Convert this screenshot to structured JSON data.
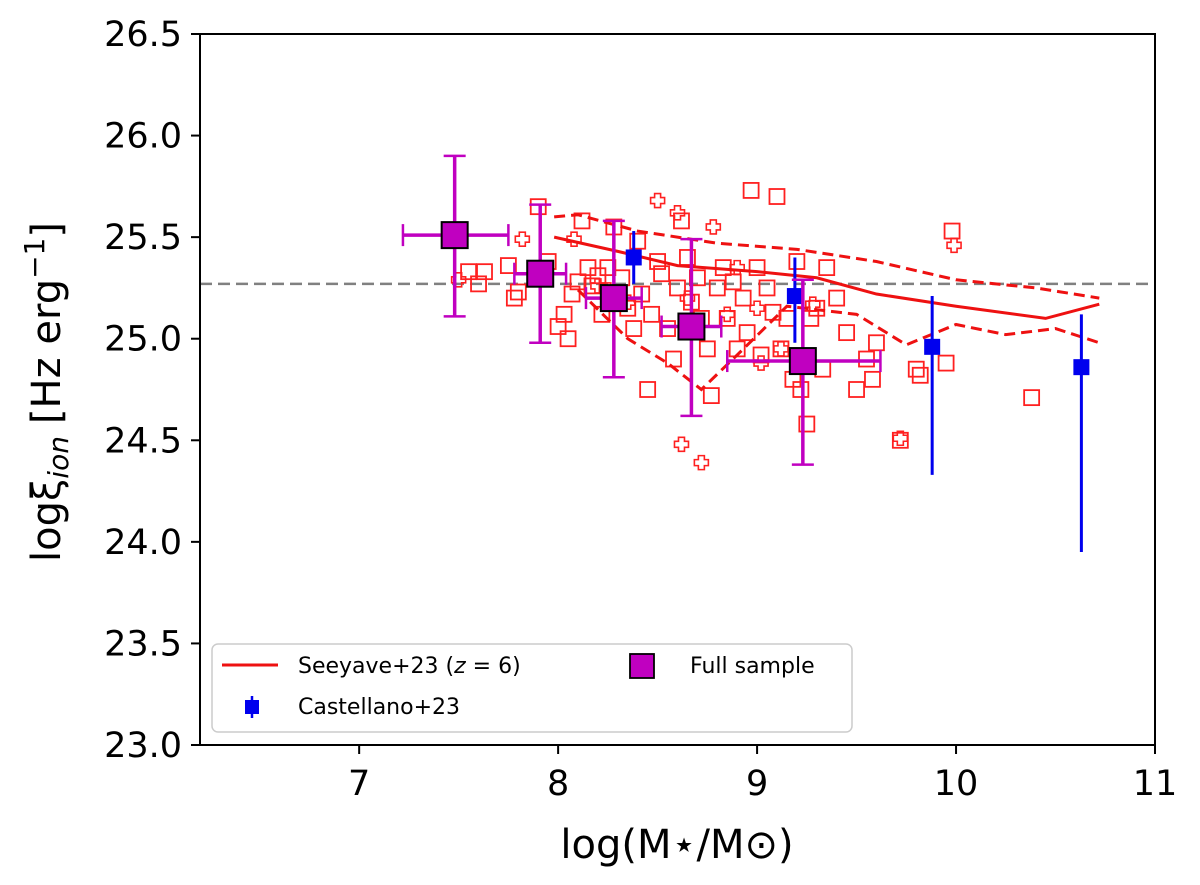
{
  "chart_data": {
    "type": "scatter",
    "title": "",
    "xlabel": "log(M⋆/M⊙)",
    "ylabel_main": "logξ",
    "ylabel_sub": "ion",
    "ylabel_unit": "[Hz erg",
    "ylabel_exp": "−1",
    "ylabel_close": "]",
    "xlim": [
      6.2,
      11.0
    ],
    "ylim": [
      23.0,
      26.5
    ],
    "xticks": [
      7,
      8,
      9,
      10,
      11
    ],
    "xtick_labels": [
      "7",
      "8",
      "9",
      "10",
      "11"
    ],
    "yticks": [
      23.0,
      23.5,
      24.0,
      24.5,
      25.0,
      25.5,
      26.0,
      26.5
    ],
    "ytick_labels": [
      "23.0",
      "23.5",
      "24.0",
      "24.5",
      "25.0",
      "25.5",
      "26.0",
      "26.5"
    ],
    "reference_line": {
      "y": 25.27,
      "style": "dashed",
      "color": "#808080"
    },
    "colors": {
      "individual": "#ff2020",
      "seeyave": "#ee1111",
      "castellano": "#0000ee",
      "full_sample": "#c000c0",
      "reference": "#808080"
    },
    "series": [
      {
        "name": "Individual galaxies (squares)",
        "marker": "open-square",
        "points": [
          [
            7.55,
            25.33
          ],
          [
            7.6,
            25.27
          ],
          [
            7.63,
            25.33
          ],
          [
            7.75,
            25.36
          ],
          [
            7.78,
            25.2
          ],
          [
            7.8,
            25.23
          ],
          [
            7.9,
            25.65
          ],
          [
            7.95,
            25.38
          ],
          [
            8.0,
            25.06
          ],
          [
            8.03,
            25.12
          ],
          [
            8.05,
            25.0
          ],
          [
            8.07,
            25.22
          ],
          [
            8.1,
            25.28
          ],
          [
            8.12,
            25.58
          ],
          [
            8.15,
            25.35
          ],
          [
            8.17,
            25.26
          ],
          [
            8.2,
            25.31
          ],
          [
            8.22,
            25.12
          ],
          [
            8.25,
            25.35
          ],
          [
            8.28,
            25.55
          ],
          [
            8.3,
            25.2
          ],
          [
            8.32,
            25.3
          ],
          [
            8.35,
            25.15
          ],
          [
            8.38,
            25.05
          ],
          [
            8.4,
            25.48
          ],
          [
            8.42,
            25.22
          ],
          [
            8.45,
            24.75
          ],
          [
            8.47,
            25.12
          ],
          [
            8.5,
            25.38
          ],
          [
            8.52,
            25.32
          ],
          [
            8.55,
            25.05
          ],
          [
            8.58,
            24.9
          ],
          [
            8.6,
            25.25
          ],
          [
            8.62,
            25.58
          ],
          [
            8.65,
            25.4
          ],
          [
            8.67,
            25.18
          ],
          [
            8.7,
            25.3
          ],
          [
            8.72,
            25.1
          ],
          [
            8.75,
            24.95
          ],
          [
            8.77,
            24.72
          ],
          [
            8.8,
            25.25
          ],
          [
            8.83,
            25.35
          ],
          [
            8.85,
            25.1
          ],
          [
            8.88,
            25.28
          ],
          [
            8.9,
            24.95
          ],
          [
            8.93,
            25.2
          ],
          [
            8.95,
            25.03
          ],
          [
            8.97,
            25.73
          ],
          [
            9.0,
            25.35
          ],
          [
            9.02,
            24.92
          ],
          [
            9.05,
            25.25
          ],
          [
            9.08,
            25.13
          ],
          [
            9.1,
            25.7
          ],
          [
            9.12,
            24.95
          ],
          [
            9.15,
            25.1
          ],
          [
            9.18,
            24.8
          ],
          [
            9.2,
            25.38
          ],
          [
            9.22,
            24.75
          ],
          [
            9.25,
            24.58
          ],
          [
            9.27,
            25.1
          ],
          [
            9.3,
            25.15
          ],
          [
            9.33,
            24.85
          ],
          [
            9.35,
            25.35
          ],
          [
            9.4,
            25.2
          ],
          [
            9.45,
            25.03
          ],
          [
            9.5,
            24.75
          ],
          [
            9.55,
            24.9
          ],
          [
            9.58,
            24.8
          ],
          [
            9.6,
            24.98
          ],
          [
            9.72,
            24.5
          ],
          [
            9.8,
            24.85
          ],
          [
            9.82,
            24.82
          ],
          [
            9.95,
            24.88
          ],
          [
            9.98,
            25.53
          ],
          [
            10.38,
            24.71
          ]
        ]
      },
      {
        "name": "Individual galaxies (crosses)",
        "marker": "open-plus",
        "points": [
          [
            7.5,
            25.29
          ],
          [
            7.82,
            25.49
          ],
          [
            8.08,
            25.49
          ],
          [
            8.2,
            25.26
          ],
          [
            8.25,
            25.24
          ],
          [
            8.35,
            25.18
          ],
          [
            8.5,
            25.68
          ],
          [
            8.6,
            25.62
          ],
          [
            8.62,
            24.48
          ],
          [
            8.65,
            25.2
          ],
          [
            8.72,
            24.39
          ],
          [
            8.78,
            25.55
          ],
          [
            8.85,
            25.12
          ],
          [
            8.9,
            25.35
          ],
          [
            9.0,
            25.15
          ],
          [
            9.02,
            24.88
          ],
          [
            9.12,
            24.95
          ],
          [
            9.28,
            25.17
          ],
          [
            9.72,
            24.51
          ],
          [
            9.99,
            25.46
          ]
        ]
      },
      {
        "name": "Seeyave+23 (z = 6)",
        "style": "line",
        "median": [
          [
            7.98,
            25.5
          ],
          [
            8.3,
            25.43
          ],
          [
            8.6,
            25.36
          ],
          [
            9.0,
            25.33
          ],
          [
            9.3,
            25.3
          ],
          [
            9.6,
            25.22
          ],
          [
            10.0,
            25.16
          ],
          [
            10.45,
            25.1
          ],
          [
            10.72,
            25.17
          ]
        ],
        "upper": [
          [
            7.98,
            25.6
          ],
          [
            8.1,
            25.61
          ],
          [
            8.4,
            25.53
          ],
          [
            8.8,
            25.47
          ],
          [
            9.2,
            25.44
          ],
          [
            9.6,
            25.38
          ],
          [
            10.0,
            25.29
          ],
          [
            10.4,
            25.25
          ],
          [
            10.72,
            25.2
          ]
        ],
        "lower": [
          [
            8.1,
            25.24
          ],
          [
            8.35,
            25.0
          ],
          [
            8.55,
            24.88
          ],
          [
            8.72,
            24.75
          ],
          [
            8.9,
            24.92
          ],
          [
            9.15,
            25.16
          ],
          [
            9.5,
            25.12
          ],
          [
            9.75,
            24.97
          ],
          [
            10.0,
            25.07
          ],
          [
            10.25,
            25.02
          ],
          [
            10.5,
            25.05
          ],
          [
            10.72,
            24.98
          ]
        ]
      },
      {
        "name": "Castellano+23",
        "marker": "filled-square",
        "points": [
          {
            "x": 8.38,
            "y": 25.4,
            "ylo": 25.27,
            "yhi": 25.53
          },
          {
            "x": 9.19,
            "y": 25.21,
            "ylo": 24.98,
            "yhi": 25.4
          },
          {
            "x": 9.88,
            "y": 24.96,
            "ylo": 24.33,
            "yhi": 25.21
          },
          {
            "x": 10.63,
            "y": 24.86,
            "ylo": 23.95,
            "yhi": 25.12
          }
        ]
      },
      {
        "name": "Full sample",
        "marker": "big-square",
        "points": [
          {
            "x": 7.48,
            "y": 25.51,
            "xlo": 7.22,
            "xhi": 7.75,
            "ylo": 25.11,
            "yhi": 25.9
          },
          {
            "x": 7.91,
            "y": 25.32,
            "xlo": 7.78,
            "xhi": 8.04,
            "ylo": 24.98,
            "yhi": 25.66
          },
          {
            "x": 8.28,
            "y": 25.2,
            "xlo": 8.14,
            "xhi": 8.42,
            "ylo": 24.81,
            "yhi": 25.58
          },
          {
            "x": 8.67,
            "y": 25.06,
            "xlo": 8.52,
            "xhi": 8.82,
            "ylo": 24.62,
            "yhi": 25.49
          },
          {
            "x": 9.23,
            "y": 24.89,
            "xlo": 8.85,
            "xhi": 9.62,
            "ylo": 24.38,
            "yhi": 25.29
          }
        ]
      }
    ],
    "legend": {
      "position": "lower-left",
      "entries": [
        "Seeyave+23 (",
        "z",
        " = 6)",
        "Full sample",
        "Castellano+23"
      ]
    }
  }
}
